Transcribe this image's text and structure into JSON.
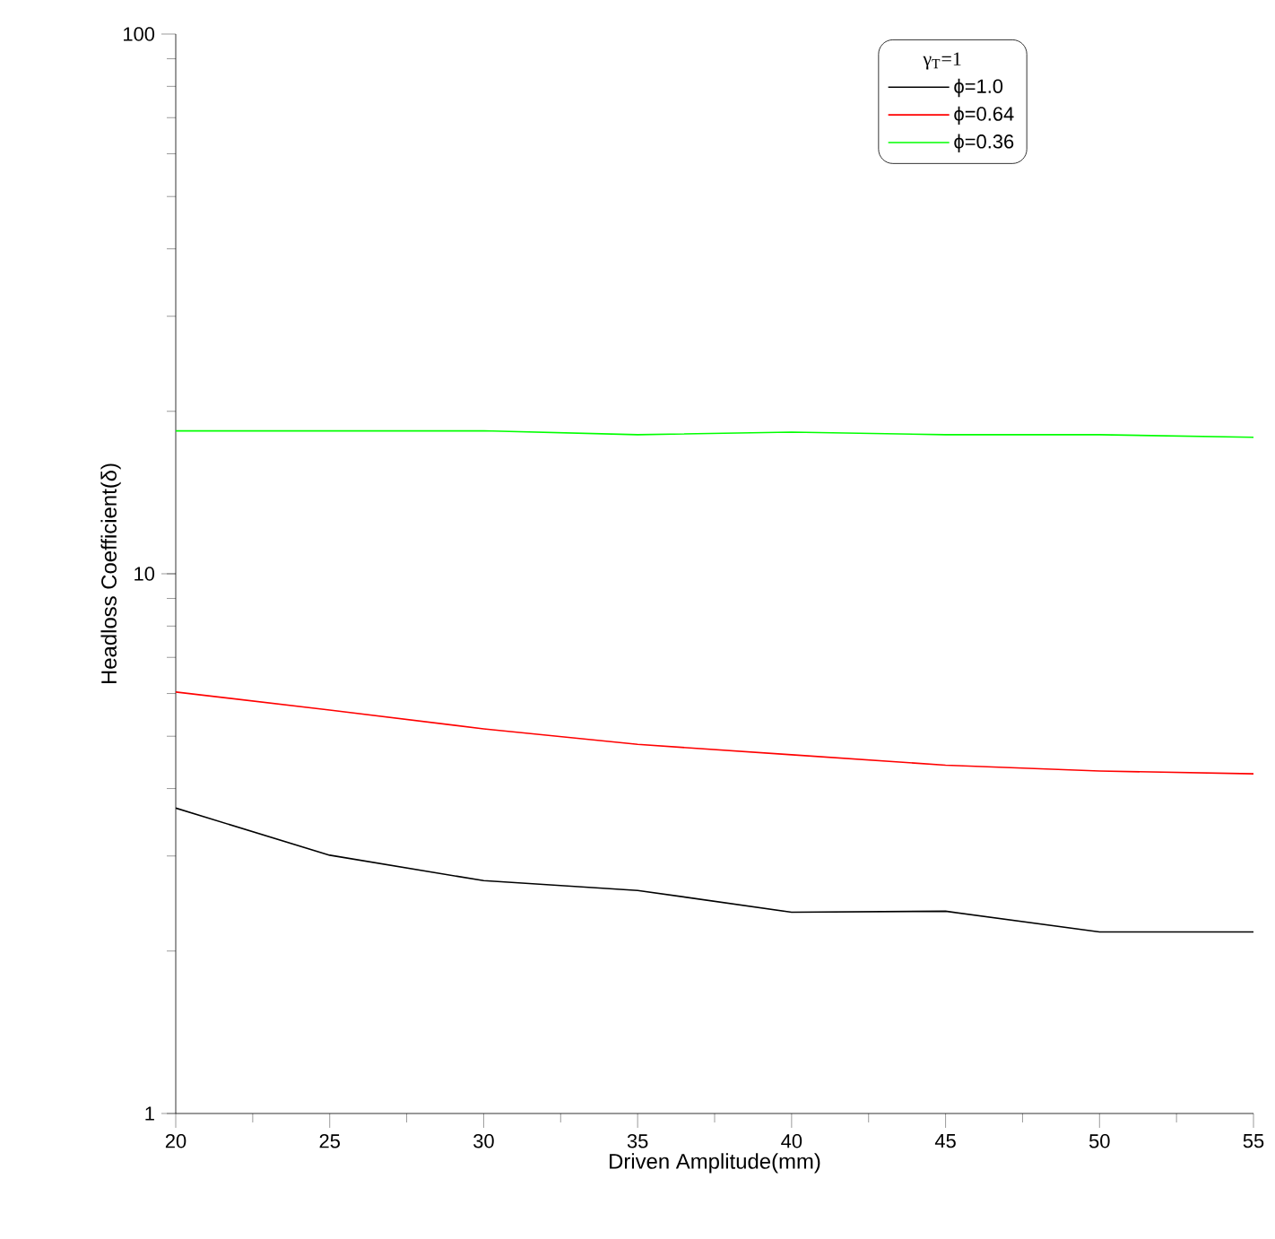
{
  "chart_data": {
    "type": "line",
    "xlabel": "Driven Amplitude(mm)",
    "ylabel": "Headloss Coefficient(δ)",
    "legend_title": "γ$_{T}$=1",
    "x": [
      20,
      25,
      30,
      35,
      40,
      45,
      50,
      55
    ],
    "series": [
      {
        "name": "ϕ=1.0",
        "color": "#000000",
        "values": [
          3.68,
          3.01,
          2.7,
          2.59,
          2.36,
          2.37,
          2.17,
          2.17
        ]
      },
      {
        "name": "ϕ=0.64",
        "color": "#ff0000",
        "values": [
          6.04,
          5.59,
          5.16,
          4.83,
          4.62,
          4.42,
          4.31,
          4.26
        ]
      },
      {
        "name": "ϕ=0.36",
        "color": "#00ff00",
        "values": [
          18.4,
          18.4,
          18.4,
          18.1,
          18.3,
          18.1,
          18.1,
          17.9
        ]
      }
    ],
    "xlim": [
      20,
      55
    ],
    "ylim": [
      1,
      100
    ],
    "xticks": [
      20,
      25,
      30,
      35,
      40,
      45,
      50,
      55
    ],
    "yticks": [
      1,
      10,
      100
    ],
    "log": "y",
    "legend": "top right",
    "marker": "none",
    "line_style": "solid"
  }
}
